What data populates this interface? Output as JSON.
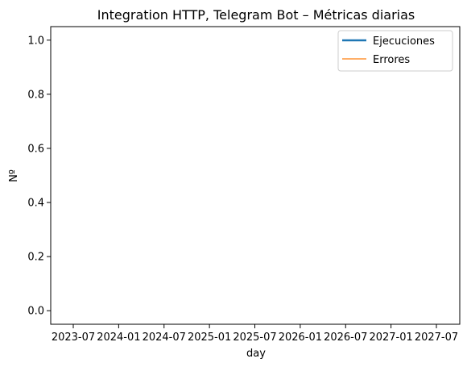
{
  "chart_data": {
    "type": "line",
    "title": "Integration HTTP, Telegram Bot – Métricas diarias",
    "xlabel": "day",
    "ylabel": "Nº",
    "x_ticks": [
      "2023-07",
      "2024-01",
      "2024-07",
      "2025-01",
      "2025-07",
      "2026-01",
      "2026-07",
      "2027-01",
      "2027-07"
    ],
    "y_ticks": [
      "0.0",
      "0.2",
      "0.4",
      "0.6",
      "0.8",
      "1.0"
    ],
    "ylim": [
      -0.05,
      1.05
    ],
    "grid": false,
    "legend_position": "top-right",
    "series": [
      {
        "name": "Ejecuciones",
        "color": "#1f77b4",
        "x": [],
        "y": []
      },
      {
        "name": "Errores",
        "color": "#ff7f0e",
        "x": [],
        "y": []
      }
    ]
  }
}
